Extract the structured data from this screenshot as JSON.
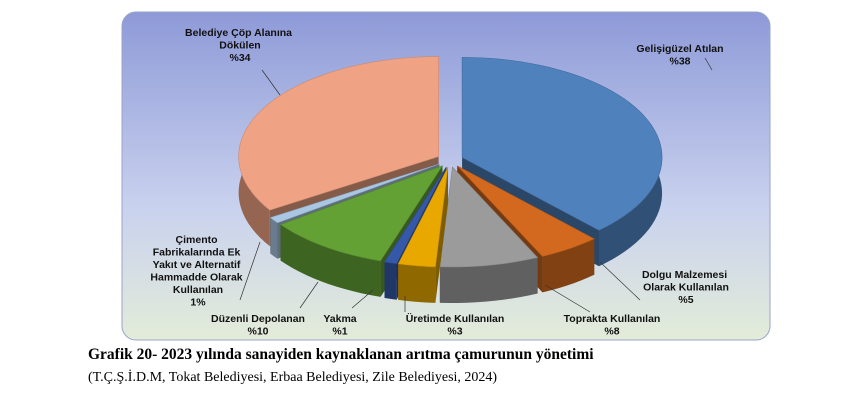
{
  "chart_data": {
    "type": "pie3d",
    "caption": "Grafik 20- 2023 yılında sanayiden kaynaklanan arıtma çamurunun yönetimi",
    "source": "(T.Ç.Ş.İ.D.M, Tokat Belediyesi, Erbaa Belediyesi, Zile Belediyesi, 2024)",
    "categories": [
      "Gelişigüzel Atılan",
      "Dolgu Malzemesi Olarak Kullanılan",
      "Toprakta Kullanılan",
      "Üretimde Kullanılan",
      "Yakma",
      "Düzenli Depolanan",
      "Çimento Fabrikalarında Ek Yakıt ve Alternatif Hammadde Olarak Kullanılan",
      "Belediye Çöp Alanına Dökülen"
    ],
    "values": [
      38,
      5,
      8,
      3,
      1,
      10,
      1,
      34
    ],
    "value_labels": [
      "%38",
      "%5",
      "%8",
      "%3",
      "%1",
      "%10",
      "1%",
      "%34"
    ],
    "colors": [
      "#4f81bd",
      "#d2691e",
      "#9b9b9b",
      "#e8a800",
      "#3558a8",
      "#64a135",
      "#a9c6e2",
      "#f0a384"
    ]
  }
}
